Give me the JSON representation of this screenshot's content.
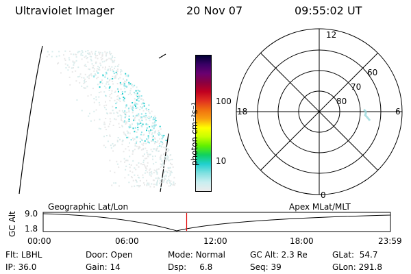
{
  "header": {
    "instrument": "Ultraviolet Imager",
    "date": "20 Nov 07",
    "time": "09:55:02 UT"
  },
  "colorbar": {
    "unit_label": "photon cm⁻²s⁻¹",
    "ticks": [
      "100",
      "10"
    ],
    "colors": [
      "#000033",
      "#3a0066",
      "#6a0070",
      "#8a0040",
      "#c00020",
      "#e03020",
      "#f07010",
      "#f8a010",
      "#ffff00",
      "#c8ff00",
      "#60f000",
      "#10d060",
      "#20d0d0",
      "#80e0e0",
      "#c8eef0",
      "#ececec"
    ]
  },
  "polar_plot": {
    "mlt_labels": {
      "top": "12",
      "bottom": "0",
      "left": "18",
      "right": "6"
    },
    "lat_labels": [
      "60",
      "70",
      "80"
    ]
  },
  "timeline": {
    "ylabel": "GC Alt",
    "y_ticks": [
      "9.0",
      "1.8"
    ],
    "left_label": "Geographic Lat/Lon",
    "right_label": "Apex MLat/MLT",
    "x_ticks": [
      "00:00",
      "06:00",
      "12:00",
      "18:00",
      "23:59"
    ],
    "current_fraction": 0.4132
  },
  "info": {
    "flt_label": "Flt:",
    "flt_value": "LBHL",
    "ip_label": "IP:",
    "ip_value": "36.0",
    "door_label": "Door:",
    "door_value": "Open",
    "gain_label": "Gain:",
    "gain_value": "14",
    "mode_label": "Mode:",
    "mode_value": "Normal",
    "dsp_label": "Dsp:",
    "dsp_value": "6.8",
    "gcalt_label": "GC Alt:",
    "gcalt_value": "2.3 Re",
    "seq_label": "Seq:",
    "seq_value": "39",
    "glat_label": "GLat:",
    "glat_value": "54.7",
    "glon_label": "GLon:",
    "glon_value": "291.8"
  }
}
